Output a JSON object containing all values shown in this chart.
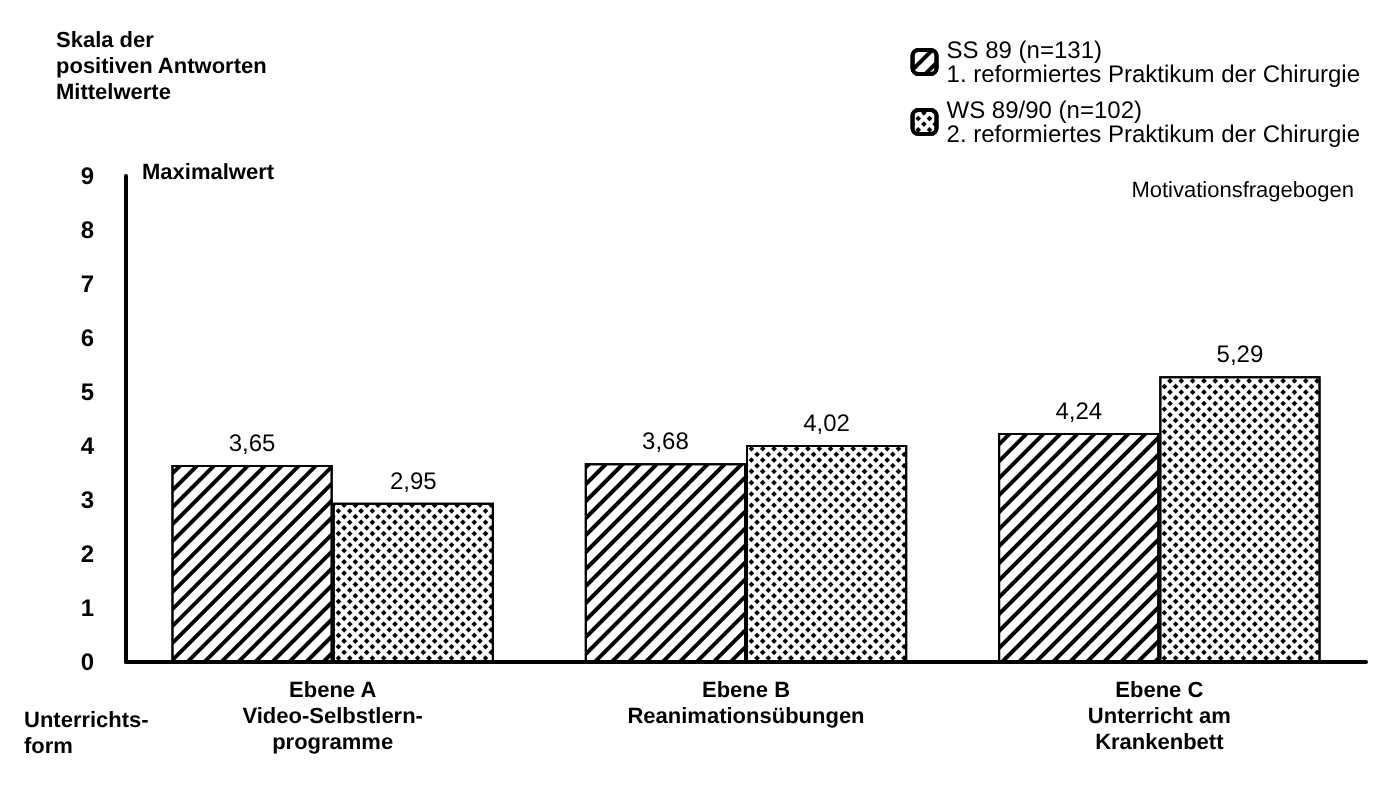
{
  "chart_data": {
    "type": "bar",
    "ylabel": "Skala der\npositiven Antworten\nMittelwerte",
    "xlabel": "Unterrichts-\nform",
    "legend_title": "Motivationsfragebogen",
    "categories": [
      "Ebene A\nVideo-Selbstlern-\nprogramme",
      "Ebene B\nReanimationsübungen",
      "Ebene C\nUnterricht am\nKrankenbett"
    ],
    "series": [
      {
        "name": "SS 89 (n=131)\n1. reformiertes Praktikum der Chirurgie",
        "color": "#ffffff",
        "values": [
          3.65,
          3.68,
          4.24
        ],
        "value_labels": [
          "3,65",
          "3,68",
          "4,24"
        ]
      },
      {
        "name": "WS 89/90 (n=102)\n2. reformiertes Praktikum der Chirurgie",
        "color": "#ffffff",
        "values": [
          2.95,
          4.02,
          5.29
        ],
        "value_labels": [
          "2,95",
          "4,02",
          "5,29"
        ]
      }
    ],
    "ylim": [
      0,
      9
    ],
    "yticks": [
      0,
      1,
      2,
      3,
      4,
      5,
      6,
      7,
      8,
      9
    ],
    "annotations": [
      "Maximalwert"
    ],
    "grid": false,
    "legend": "top right"
  }
}
